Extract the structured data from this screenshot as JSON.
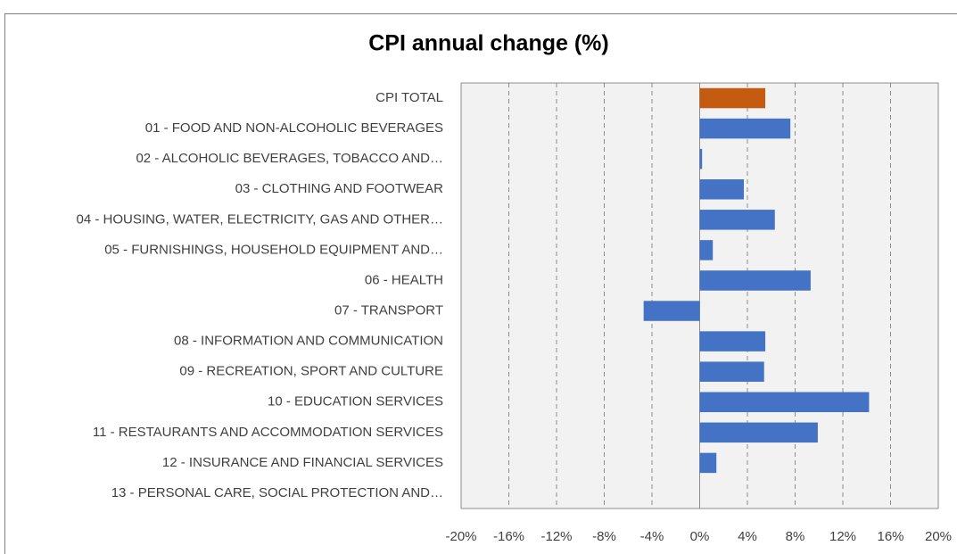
{
  "chart_data": {
    "type": "bar",
    "orientation": "horizontal",
    "title": "CPI annual change (%)",
    "categories": [
      "CPI TOTAL",
      "01 - FOOD AND NON-ALCOHOLIC BEVERAGES",
      "02 - ALCOHOLIC BEVERAGES, TOBACCO AND…",
      "03 - CLOTHING AND FOOTWEAR",
      "04 - HOUSING, WATER, ELECTRICITY, GAS AND OTHER…",
      "05 - FURNISHINGS, HOUSEHOLD EQUIPMENT AND…",
      "06 - HEALTH",
      "07 - TRANSPORT",
      "08 - INFORMATION AND COMMUNICATION",
      "09 - RECREATION, SPORT AND CULTURE",
      "10 - EDUCATION SERVICES",
      "11 - RESTAURANTS AND ACCOMMODATION SERVICES",
      "12 - INSURANCE AND FINANCIAL SERVICES",
      "13 - PERSONAL CARE, SOCIAL PROTECTION AND…"
    ],
    "values": [
      5.5,
      7.6,
      0.2,
      3.7,
      6.3,
      1.1,
      9.3,
      -4.7,
      5.5,
      5.4,
      14.2,
      9.9,
      1.4,
      0
    ],
    "colors": [
      "#c55a11",
      "#4472c4",
      "#4472c4",
      "#4472c4",
      "#4472c4",
      "#4472c4",
      "#4472c4",
      "#4472c4",
      "#4472c4",
      "#4472c4",
      "#4472c4",
      "#4472c4",
      "#4472c4",
      "#4472c4"
    ],
    "xlim": [
      -20,
      20
    ],
    "xticks": [
      {
        "value": -20,
        "label": "-20%"
      },
      {
        "value": -16,
        "label": "-16%"
      },
      {
        "value": -12,
        "label": "-12%"
      },
      {
        "value": -8,
        "label": "-8%"
      },
      {
        "value": -4,
        "label": "-4%"
      },
      {
        "value": 0,
        "label": "0%"
      },
      {
        "value": 4,
        "label": "4%"
      },
      {
        "value": 8,
        "label": "8%"
      },
      {
        "value": 12,
        "label": "12%"
      },
      {
        "value": 16,
        "label": "16%"
      },
      {
        "value": 20,
        "label": "20%"
      }
    ],
    "grid": true
  }
}
